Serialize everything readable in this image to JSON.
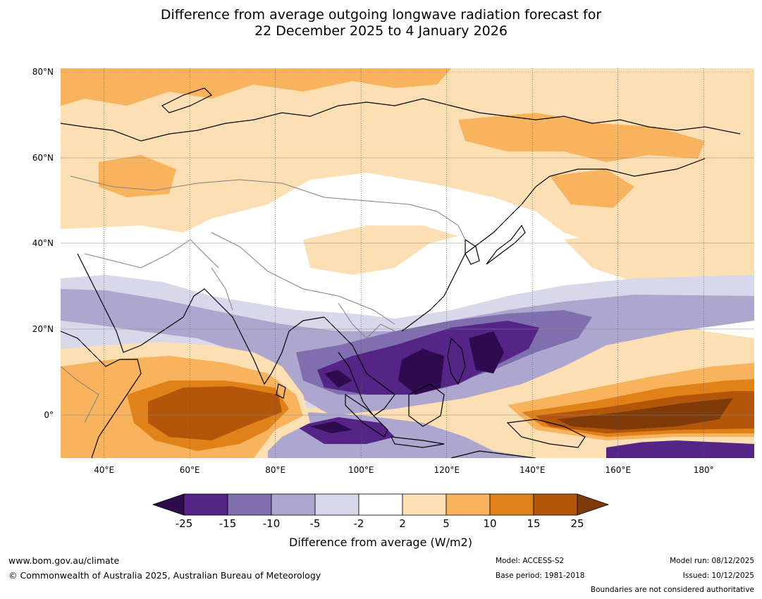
{
  "title": {
    "line1": "Difference from average outgoing longwave radiation forecast for",
    "line2": "22 December 2025 to 4 January 2026"
  },
  "map": {
    "lat_labels": [
      "80°N",
      "60°N",
      "40°N",
      "20°N",
      "0°"
    ],
    "lon_labels": [
      "40°E",
      "60°E",
      "80°E",
      "100°E",
      "120°E",
      "140°E",
      "160°E",
      "180°"
    ],
    "lon_range": [
      30,
      192
    ],
    "lat_range": [
      -10,
      80
    ]
  },
  "legend": {
    "ticks": [
      "-25",
      "-15",
      "-10",
      "-5",
      "-2",
      "2",
      "5",
      "10",
      "15",
      "25"
    ],
    "label": "Difference from average (W/m2)",
    "colors": {
      "lt_-25": "#2e0b4e",
      "b1": "#542487",
      "b2": "#7f6fae",
      "b3": "#ada6cf",
      "b4": "#d9d8ea",
      "b5": "#ffffff",
      "b6": "#fddfb4",
      "b7": "#f9b35d",
      "b8": "#e08218",
      "b9": "#b4560a",
      "gt_25": "#7f3a0a"
    }
  },
  "footer": {
    "website": "www.bom.gov.au/climate",
    "copyright": "© Commonwealth of Australia 2025, Australian Bureau of Meteorology",
    "model": "Model: ACCESS-S2",
    "base_period": "Base period: 1981-2018",
    "model_run": "Model run: 08/12/2025",
    "issued": "Issued: 10/12/2025",
    "boundaries": "Boundaries are not considered authoritative"
  }
}
